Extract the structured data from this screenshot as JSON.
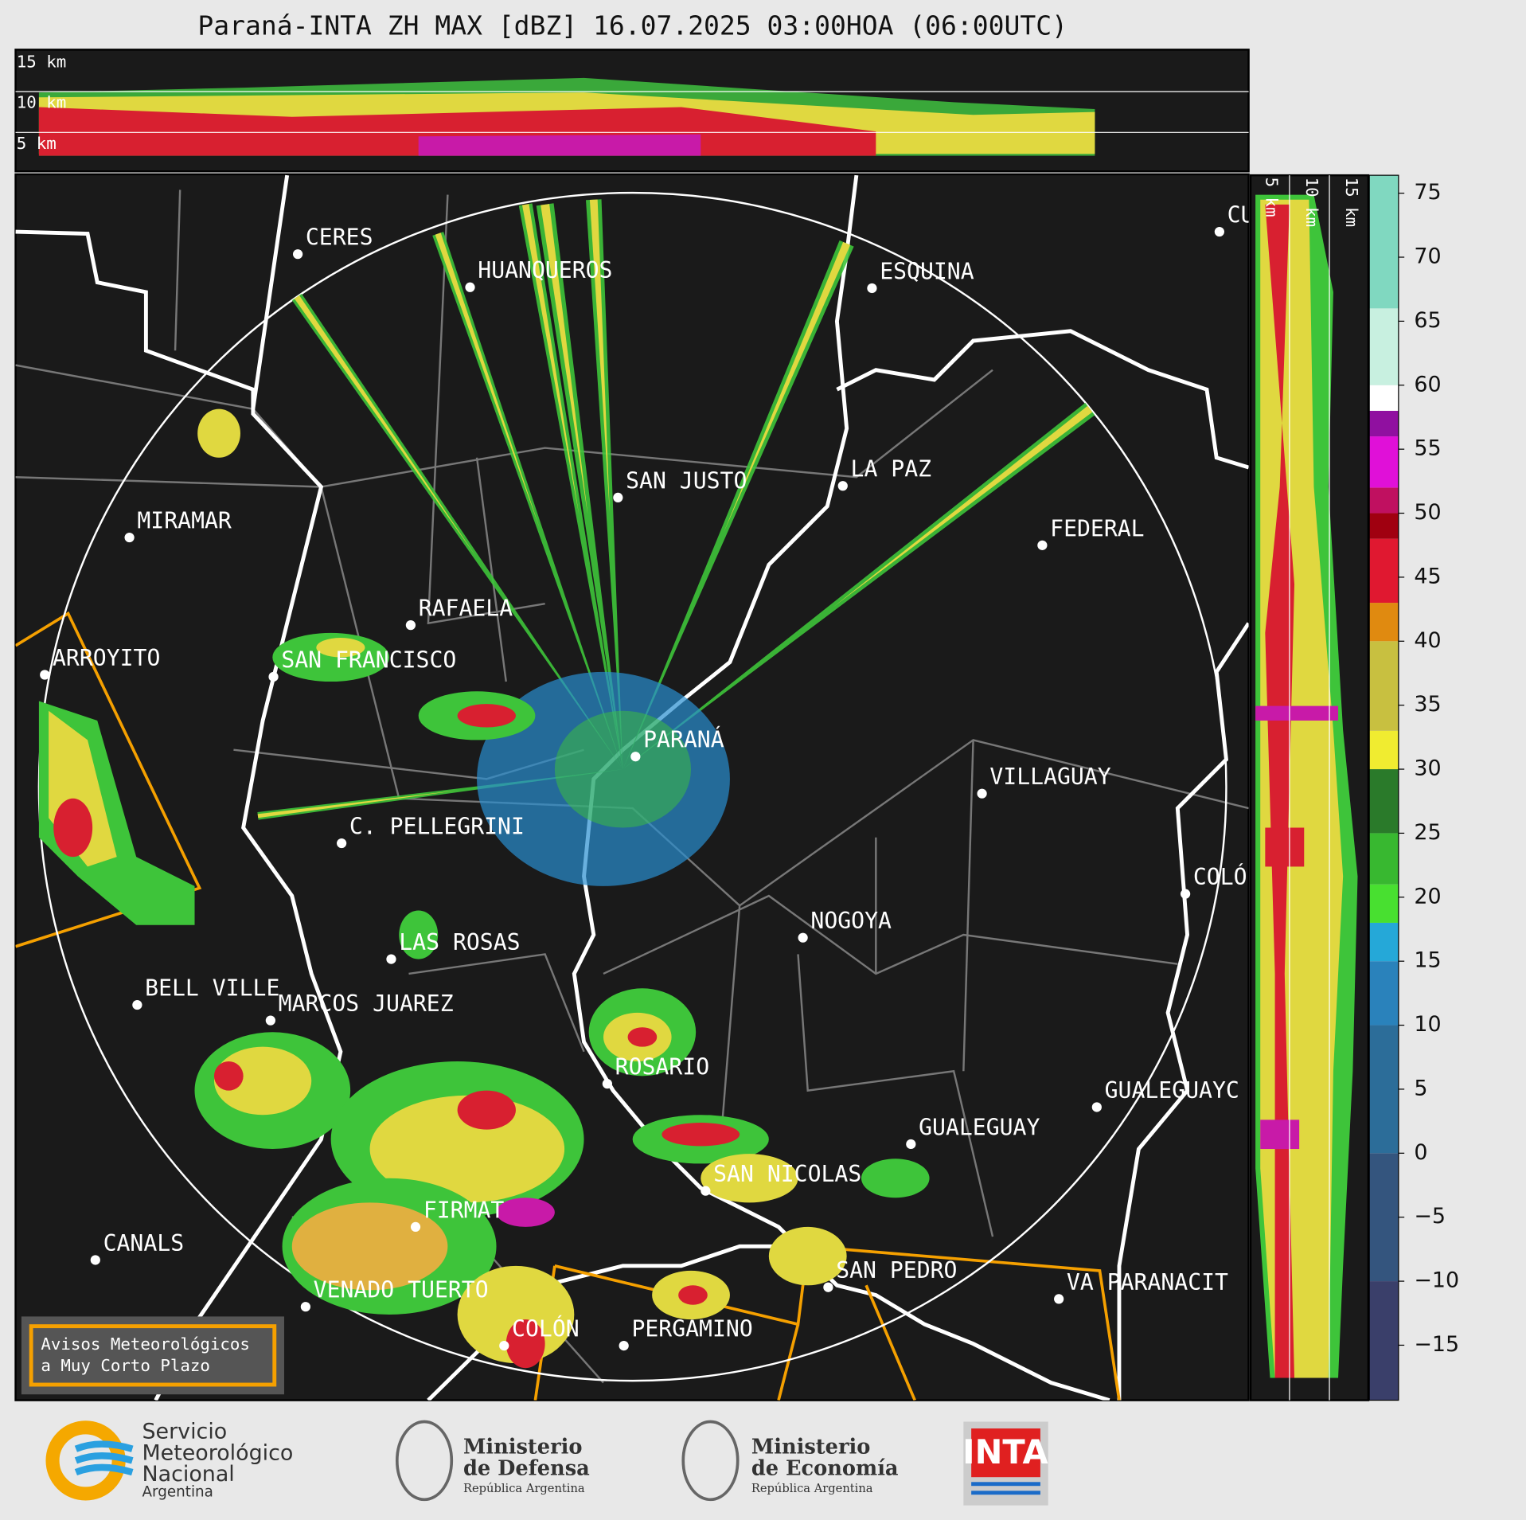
{
  "title": "Paraná-INTA ZH MAX [dBZ] 16.07.2025 03:00HOA (06:00UTC)",
  "top_panel": {
    "labels": [
      "15 km",
      "10 km",
      "5 km"
    ]
  },
  "side_panel": {
    "labels": [
      "5 km",
      "10 km",
      "15 km"
    ]
  },
  "map": {
    "cities": [
      "CERES",
      "HUANQUEROS",
      "ESQUINA",
      "SAN JUSTO",
      "LA PAZ",
      "MIRAMAR",
      "FEDERAL",
      "RAFAELA",
      "ARROYITO",
      "SAN FRANCISCO",
      "PARANÁ",
      "VILLAGUAY",
      "C. PELLEGRINI",
      "COLÓ",
      "NOGOYA",
      "LAS ROSAS",
      "BELL VILLE",
      "MARCOS JUAREZ",
      "ROSARIO",
      "GUALEGUAYC",
      "GUALEGUAY",
      "SAN NICOLAS",
      "FIRMAT",
      "CANALS",
      "SAN PEDRO",
      "VA PARANACIT",
      "VENADO TUERTO",
      "COLÓN",
      "PERGAMINO",
      "CU"
    ],
    "warning": [
      "Avisos Meteorológicos",
      "a Muy Corto Plazo"
    ]
  },
  "colorbar": {
    "lim": [
      -19.3,
      76.4
    ],
    "ticks": [
      75,
      70,
      65,
      60,
      55,
      50,
      45,
      40,
      35,
      30,
      25,
      20,
      15,
      10,
      5,
      0,
      {
        "value": -5,
        "label": "−5"
      },
      {
        "value": -10,
        "label": "−10"
      },
      {
        "value": -15,
        "label": "−15"
      }
    ]
  },
  "logos": {
    "smn": [
      "Servicio",
      "Meteorológico",
      "Nacional",
      "Argentina"
    ],
    "defensa": [
      "Ministerio",
      "de Defensa",
      "República Argentina"
    ],
    "economia": [
      "Ministerio",
      "de Economía",
      "República Argentina"
    ],
    "inta": "INTA"
  }
}
